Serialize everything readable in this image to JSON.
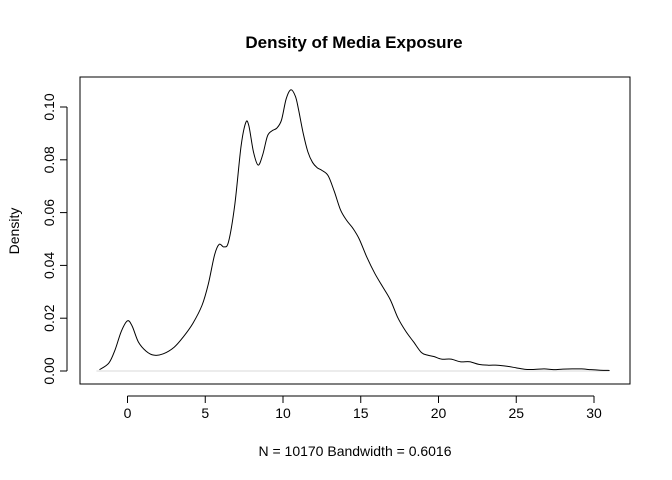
{
  "chart_data": {
    "type": "line",
    "title": "Density of Media Exposure",
    "xlabel": "N = 10170   Bandwidth = 0.6016",
    "ylabel": "Density",
    "xlim": [
      -2,
      31
    ],
    "ylim": [
      0,
      0.108
    ],
    "x_ticks": [
      0,
      5,
      10,
      15,
      20,
      25,
      30
    ],
    "y_ticks": [
      0.0,
      0.02,
      0.04,
      0.06,
      0.08,
      0.1
    ],
    "x_tick_labels": [
      "0",
      "5",
      "10",
      "15",
      "20",
      "25",
      "30"
    ],
    "y_tick_labels": [
      "0.00",
      "0.02",
      "0.04",
      "0.06",
      "0.08",
      "0.10"
    ],
    "grid": false,
    "baseline": 0,
    "series": [
      {
        "x": [
          -1.8,
          -1.2,
          -0.8,
          -0.4,
          0.0,
          0.3,
          0.7,
          1.2,
          1.7,
          2.3,
          3.0,
          3.6,
          4.2,
          4.8,
          5.2,
          5.6,
          5.9,
          6.2,
          6.5,
          6.9,
          7.3,
          7.6,
          7.8,
          8.1,
          8.4,
          8.7,
          9.0,
          9.3,
          9.6,
          9.9,
          10.2,
          10.5,
          10.8,
          11.0,
          11.3,
          11.6,
          11.9,
          12.2,
          12.5,
          12.9,
          13.3,
          13.7,
          14.1,
          14.5,
          14.9,
          15.4,
          15.9,
          16.4,
          16.9,
          17.4,
          17.9,
          18.4,
          18.9,
          19.3,
          19.7,
          20.2,
          20.8,
          21.4,
          22.0,
          22.6,
          23.2,
          23.8,
          24.4,
          25.0,
          25.6,
          26.2,
          26.8,
          27.4,
          28.0,
          28.6,
          29.2,
          29.8,
          30.4,
          31.0
        ],
        "y": [
          0.0005,
          0.003,
          0.008,
          0.015,
          0.019,
          0.017,
          0.011,
          0.0075,
          0.006,
          0.0065,
          0.009,
          0.013,
          0.018,
          0.025,
          0.033,
          0.044,
          0.048,
          0.047,
          0.049,
          0.063,
          0.085,
          0.094,
          0.093,
          0.083,
          0.078,
          0.082,
          0.089,
          0.091,
          0.092,
          0.095,
          0.103,
          0.1065,
          0.104,
          0.099,
          0.09,
          0.083,
          0.079,
          0.077,
          0.076,
          0.074,
          0.068,
          0.061,
          0.057,
          0.054,
          0.05,
          0.043,
          0.037,
          0.032,
          0.027,
          0.02,
          0.015,
          0.011,
          0.007,
          0.006,
          0.0055,
          0.0045,
          0.0045,
          0.0035,
          0.0035,
          0.0025,
          0.0022,
          0.0022,
          0.0018,
          0.0012,
          0.0006,
          0.0006,
          0.0008,
          0.0005,
          0.0007,
          0.0008,
          0.0008,
          0.0005,
          0.0003,
          0.0002
        ]
      }
    ]
  }
}
